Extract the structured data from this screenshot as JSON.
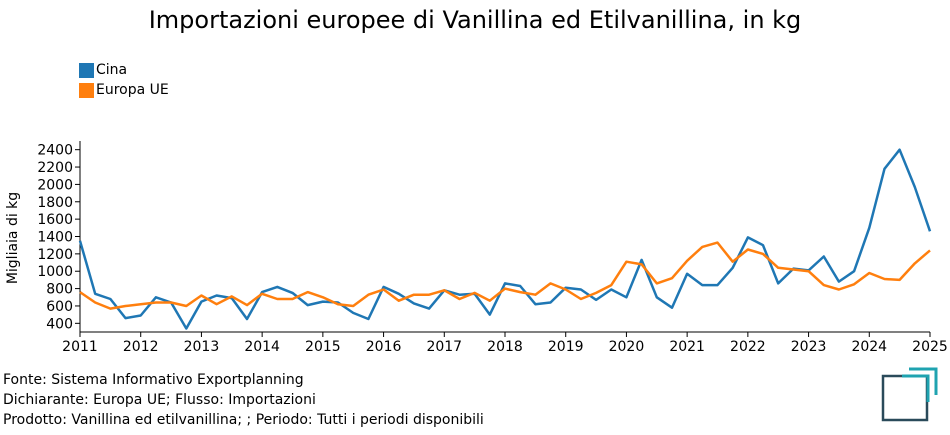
{
  "chart_data": {
    "type": "line",
    "title": "Importazioni europee di Vanillina ed Etilvanillina, in kg",
    "ylabel": "Migliaia di kg",
    "xlabel": "",
    "xlim": [
      2011,
      2025
    ],
    "ylim": [
      300,
      2500
    ],
    "yticks": [
      400,
      600,
      800,
      1000,
      1200,
      1400,
      1600,
      1800,
      2000,
      2200,
      2400
    ],
    "xticks": [
      2011,
      2012,
      2013,
      2014,
      2015,
      2016,
      2017,
      2018,
      2019,
      2020,
      2021,
      2022,
      2023,
      2024,
      2025
    ],
    "grid": false,
    "legend_position": "top-left",
    "colors": {
      "Cina": "#1f77b4",
      "Europa UE": "#ff7f0e"
    },
    "series": [
      {
        "name": "Cina",
        "x": [
          2011.0,
          2011.25,
          2011.5,
          2011.75,
          2012.0,
          2012.25,
          2012.5,
          2012.75,
          2013.0,
          2013.25,
          2013.5,
          2013.75,
          2014.0,
          2014.25,
          2014.5,
          2014.75,
          2015.0,
          2015.25,
          2015.5,
          2015.75,
          2016.0,
          2016.25,
          2016.5,
          2016.75,
          2017.0,
          2017.25,
          2017.5,
          2017.75,
          2018.0,
          2018.25,
          2018.5,
          2018.75,
          2019.0,
          2019.25,
          2019.5,
          2019.75,
          2020.0,
          2020.25,
          2020.5,
          2020.75,
          2021.0,
          2021.25,
          2021.5,
          2021.75,
          2022.0,
          2022.25,
          2022.5,
          2022.75,
          2023.0,
          2023.25,
          2023.5,
          2023.75,
          2024.0,
          2024.25,
          2024.5,
          2024.75,
          2025.0
        ],
        "values": [
          1350,
          740,
          680,
          460,
          490,
          700,
          640,
          340,
          650,
          720,
          690,
          450,
          760,
          820,
          750,
          610,
          650,
          640,
          520,
          450,
          820,
          740,
          630,
          570,
          780,
          730,
          740,
          500,
          860,
          830,
          620,
          640,
          810,
          790,
          670,
          790,
          700,
          1130,
          700,
          580,
          970,
          840,
          840,
          1040,
          1390,
          1300,
          860,
          1030,
          1010,
          1170,
          880,
          1000,
          1500,
          2180,
          2400,
          1970,
          1460
        ]
      },
      {
        "name": "Europa UE",
        "x": [
          2011.0,
          2011.25,
          2011.5,
          2011.75,
          2012.0,
          2012.25,
          2012.5,
          2012.75,
          2013.0,
          2013.25,
          2013.5,
          2013.75,
          2014.0,
          2014.25,
          2014.5,
          2014.75,
          2015.0,
          2015.25,
          2015.5,
          2015.75,
          2016.0,
          2016.25,
          2016.5,
          2016.75,
          2017.0,
          2017.25,
          2017.5,
          2017.75,
          2018.0,
          2018.25,
          2018.5,
          2018.75,
          2019.0,
          2019.25,
          2019.5,
          2019.75,
          2020.0,
          2020.25,
          2020.5,
          2020.75,
          2021.0,
          2021.25,
          2021.5,
          2021.75,
          2022.0,
          2022.25,
          2022.5,
          2022.75,
          2023.0,
          2023.25,
          2023.5,
          2023.75,
          2024.0,
          2024.25,
          2024.5,
          2024.75,
          2025.0
        ],
        "values": [
          760,
          640,
          570,
          600,
          620,
          640,
          640,
          600,
          720,
          620,
          710,
          610,
          740,
          680,
          680,
          760,
          700,
          620,
          600,
          730,
          790,
          660,
          730,
          730,
          780,
          680,
          750,
          660,
          800,
          760,
          730,
          860,
          790,
          680,
          750,
          840,
          1110,
          1080,
          860,
          920,
          1120,
          1280,
          1330,
          1110,
          1250,
          1200,
          1040,
          1020,
          1000,
          840,
          790,
          850,
          980,
          910,
          900,
          1090,
          1240
        ]
      }
    ]
  },
  "footer": {
    "line1": "Fonte: Sistema Informativo Exportplanning",
    "line2": "Dichiarante: Europa UE; Flusso: Importazioni",
    "line3": "Prodotto: Vanillina ed etilvanillina; ; Periodo: Tutti i periodi disponibili"
  },
  "logo": {
    "icon": "exportplanning-logo-icon",
    "color": "#2a4a5a",
    "accent": "#1fa3b0"
  }
}
